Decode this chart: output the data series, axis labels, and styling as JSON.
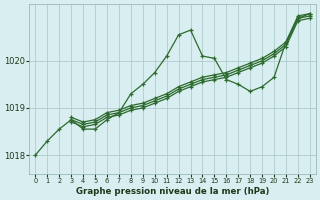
{
  "title": "Graphe pression niveau de la mer (hPa)",
  "background_color": "#d8eef0",
  "grid_color": "#b0cccc",
  "line_color": "#2d6a2d",
  "ylim": [
    1017.6,
    1021.2
  ],
  "xlim": [
    -0.5,
    23.5
  ],
  "yticks": [
    1018,
    1019,
    1020
  ],
  "xticks": [
    0,
    1,
    2,
    3,
    4,
    5,
    6,
    7,
    8,
    9,
    10,
    11,
    12,
    13,
    14,
    15,
    16,
    17,
    18,
    19,
    20,
    21,
    22,
    23
  ],
  "series": [
    {
      "x": [
        0,
        1,
        2,
        3,
        4,
        5,
        6,
        7,
        8,
        9,
        10,
        11,
        12,
        13,
        14,
        15,
        16,
        17,
        18,
        19,
        20,
        21,
        22,
        23
      ],
      "y": [
        1018.0,
        1018.3,
        1018.55,
        1018.75,
        1018.55,
        1018.55,
        1018.75,
        1018.9,
        1019.3,
        1019.5,
        1019.75,
        1020.1,
        1020.55,
        1020.65,
        1020.1,
        1020.05,
        1019.6,
        1019.5,
        1019.35,
        1019.45,
        1019.65,
        1020.4,
        1020.9,
        1021.0
      ],
      "marker": "+"
    },
    {
      "x": [
        3,
        4,
        5,
        6,
        7,
        8,
        9,
        10,
        11,
        12,
        13,
        14,
        15,
        16,
        17,
        18,
        19,
        20,
        21,
        22,
        23
      ],
      "y": [
        1018.7,
        1018.6,
        1018.65,
        1018.8,
        1018.85,
        1018.95,
        1019.0,
        1019.1,
        1019.2,
        1019.35,
        1019.45,
        1019.55,
        1019.6,
        1019.65,
        1019.75,
        1019.85,
        1019.95,
        1020.1,
        1020.3,
        1020.85,
        1020.9
      ],
      "marker": "+"
    },
    {
      "x": [
        3,
        4,
        5,
        6,
        7,
        8,
        9,
        10,
        11,
        12,
        13,
        14,
        15,
        16,
        17,
        18,
        19,
        20,
        21,
        22,
        23
      ],
      "y": [
        1018.75,
        1018.65,
        1018.7,
        1018.85,
        1018.9,
        1019.0,
        1019.05,
        1019.15,
        1019.25,
        1019.4,
        1019.5,
        1019.6,
        1019.65,
        1019.7,
        1019.8,
        1019.9,
        1020.0,
        1020.15,
        1020.35,
        1020.9,
        1020.95
      ],
      "marker": "+"
    },
    {
      "x": [
        3,
        4,
        5,
        6,
        7,
        8,
        9,
        10,
        11,
        12,
        13,
        14,
        15,
        16,
        17,
        18,
        19,
        20,
        21,
        22,
        23
      ],
      "y": [
        1018.8,
        1018.7,
        1018.75,
        1018.9,
        1018.95,
        1019.05,
        1019.1,
        1019.2,
        1019.3,
        1019.45,
        1019.55,
        1019.65,
        1019.7,
        1019.75,
        1019.85,
        1019.95,
        1020.05,
        1020.2,
        1020.4,
        1020.95,
        1021.0
      ],
      "marker": "+"
    }
  ]
}
